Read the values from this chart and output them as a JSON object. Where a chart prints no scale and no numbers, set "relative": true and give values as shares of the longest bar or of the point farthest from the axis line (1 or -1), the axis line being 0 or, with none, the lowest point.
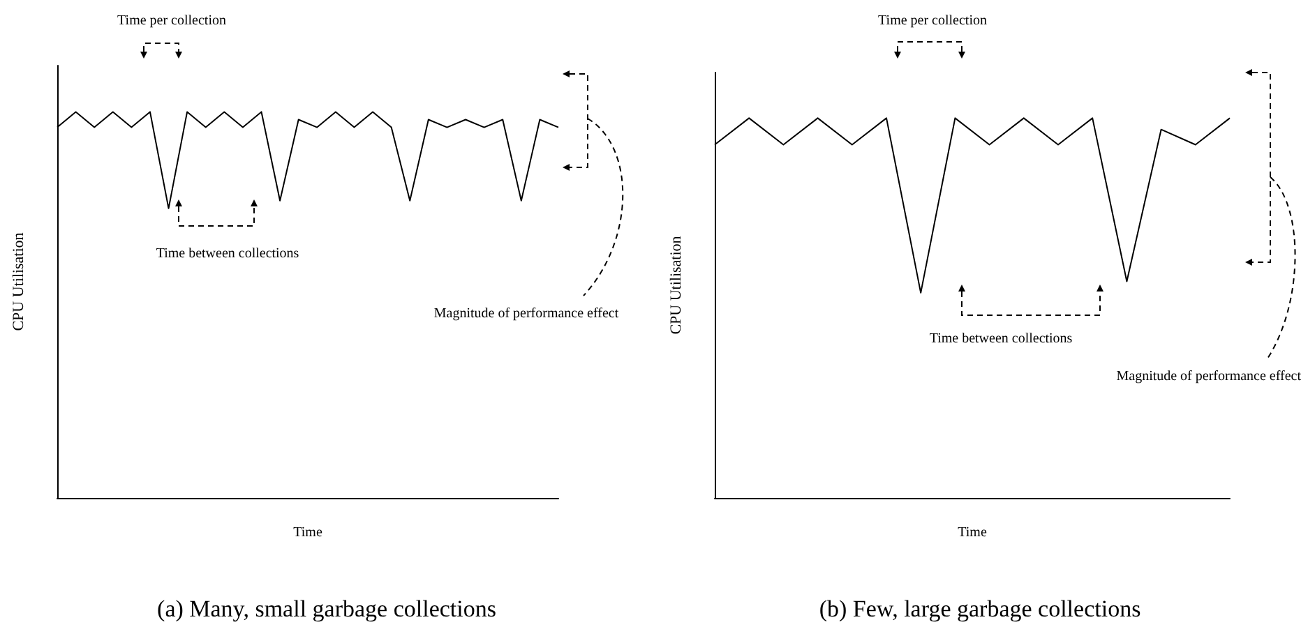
{
  "chart_data": [
    {
      "type": "line",
      "relative": true,
      "title": "(a) Many, small garbage collections",
      "xlabel": "Time",
      "ylabel": "CPU Utilisation",
      "color": "#000000",
      "marker": "none",
      "line_style": "solid",
      "grid": false,
      "categories": [
        null,
        null,
        null,
        null,
        null,
        null,
        null,
        null,
        null,
        null,
        null,
        null,
        null,
        null,
        null,
        null,
        null,
        null,
        null,
        null,
        null,
        null,
        null,
        null,
        null,
        null,
        null,
        null
      ],
      "values": [
        0.96,
        1,
        0.96,
        1,
        0.96,
        1,
        0.75,
        1,
        0.96,
        1,
        0.96,
        1,
        0.77,
        0.98,
        0.96,
        1,
        0.96,
        1,
        0.96,
        0.77,
        0.98,
        0.96,
        0.98,
        0.96,
        0.98,
        0.77,
        0.98,
        0.96
      ],
      "annotations": [
        "Time per collection",
        "Time between collections",
        "Magnitude of performance effect"
      ]
    },
    {
      "type": "line",
      "relative": true,
      "title": "(b) Few, large garbage collections",
      "xlabel": "Time",
      "ylabel": "CPU Utilisation",
      "color": "#000000",
      "marker": "none",
      "line_style": "solid",
      "grid": false,
      "categories": [
        null,
        null,
        null,
        null,
        null,
        null,
        null,
        null,
        null,
        null,
        null,
        null,
        null,
        null,
        null,
        null
      ],
      "values": [
        0.93,
        1,
        0.93,
        1,
        0.93,
        1,
        0.54,
        1,
        0.93,
        1,
        0.93,
        1,
        0.57,
        0.97,
        0.93,
        1
      ],
      "annotations": [
        "Time per collection",
        "Time between collections",
        "Magnitude of performance effect"
      ]
    }
  ]
}
